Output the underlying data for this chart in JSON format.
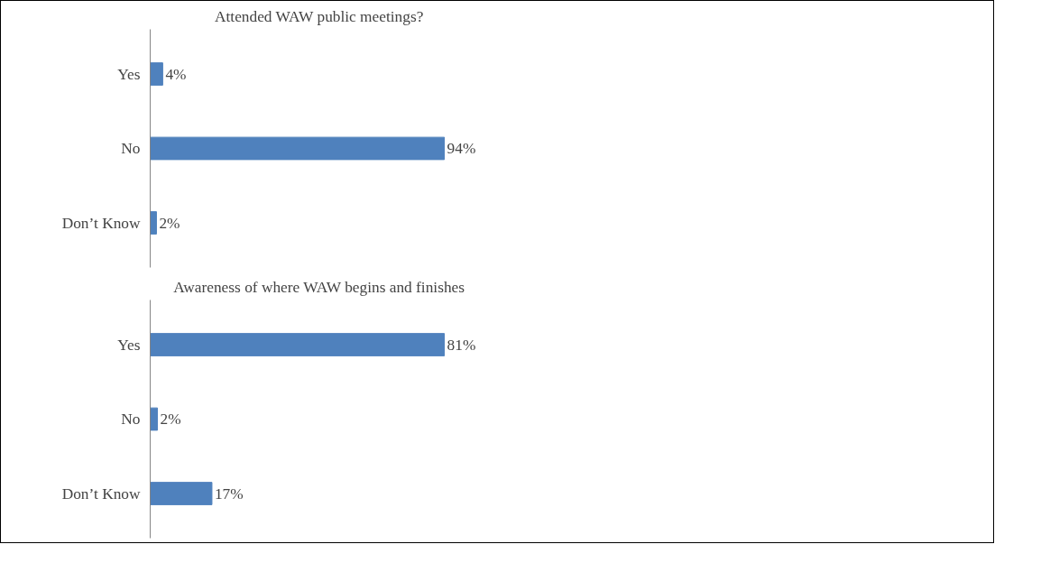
{
  "chart_data": [
    {
      "type": "bar",
      "orientation": "horizontal",
      "title": "Attended WAW public meetings?",
      "categories": [
        "Yes",
        "No",
        "Don’t Know"
      ],
      "values": [
        4,
        94,
        2
      ],
      "value_labels": [
        "4%",
        "94%",
        "2%"
      ],
      "color": "#4f81bd",
      "grid": false
    },
    {
      "type": "bar",
      "orientation": "horizontal",
      "title": "Awareness of where WAW begins and finishes",
      "categories": [
        "Yes",
        "No",
        "Don’t Know"
      ],
      "values": [
        81,
        2,
        17
      ],
      "value_labels": [
        "81%",
        "2%",
        "17%"
      ],
      "color": "#4f81bd",
      "grid": false
    }
  ]
}
